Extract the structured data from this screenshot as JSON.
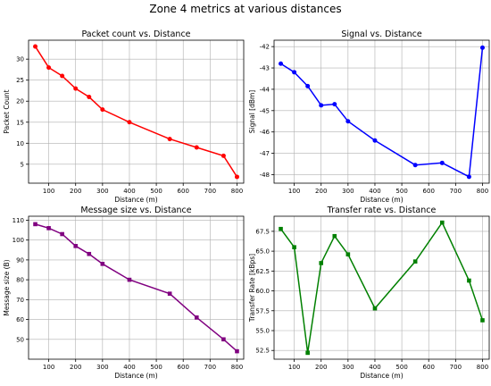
{
  "figure": {
    "title": "Zone 4 metrics at various distances"
  },
  "chart_data": [
    {
      "type": "line",
      "title": "Packet count vs. Distance",
      "xlabel": "Distance (m)",
      "ylabel": "Packet Count",
      "xlim": [
        25,
        825
      ],
      "ylim": [
        0.5,
        34.5
      ],
      "xticks": [
        100,
        200,
        300,
        400,
        500,
        600,
        700,
        800
      ],
      "yticks": [
        5,
        10,
        15,
        20,
        25,
        30
      ],
      "grid": true,
      "color": "#ff0000",
      "marker": "circle",
      "x": [
        50,
        100,
        150,
        200,
        250,
        300,
        400,
        550,
        650,
        750,
        800
      ],
      "y": [
        33,
        28,
        26,
        23,
        21,
        18,
        15,
        11,
        9,
        7,
        2
      ]
    },
    {
      "type": "line",
      "title": "Signal vs. Distance",
      "xlabel": "Distance (m)",
      "ylabel": "Signal [dBm]",
      "xlim": [
        25,
        825
      ],
      "ylim": [
        -48.4,
        -41.7
      ],
      "xticks": [
        100,
        200,
        300,
        400,
        500,
        600,
        700,
        800
      ],
      "yticks": [
        -48,
        -47,
        -46,
        -45,
        -44,
        -43,
        -42
      ],
      "grid": true,
      "color": "#0000ff",
      "marker": "circle",
      "x": [
        50,
        100,
        150,
        200,
        250,
        300,
        400,
        550,
        650,
        750,
        800
      ],
      "y": [
        -42.8,
        -43.2,
        -43.85,
        -44.75,
        -44.7,
        -45.5,
        -46.4,
        -47.55,
        -47.45,
        -48.1,
        -42.05
      ]
    },
    {
      "type": "line",
      "title": "Message size vs. Distance",
      "xlabel": "Distance (m)",
      "ylabel": "Message size (B)",
      "xlim": [
        25,
        825
      ],
      "ylim": [
        40,
        112
      ],
      "xticks": [
        100,
        200,
        300,
        400,
        500,
        600,
        700,
        800
      ],
      "yticks": [
        50,
        60,
        70,
        80,
        90,
        100,
        110
      ],
      "grid": true,
      "color": "#800080",
      "marker": "square",
      "x": [
        50,
        100,
        150,
        200,
        250,
        300,
        400,
        550,
        650,
        750,
        800
      ],
      "y": [
        108,
        106,
        103,
        97,
        93,
        88,
        80,
        73,
        61,
        50,
        44
      ]
    },
    {
      "type": "line",
      "title": "Transfer rate vs. Distance",
      "xlabel": "Distance (m)",
      "ylabel": "Transfer Rate [kBps]",
      "xlim": [
        25,
        825
      ],
      "ylim": [
        51.4,
        69.4
      ],
      "xticks": [
        100,
        200,
        300,
        400,
        500,
        600,
        700,
        800
      ],
      "yticks": [
        52.5,
        55.0,
        57.5,
        60.0,
        62.5,
        65.0,
        67.5
      ],
      "grid": true,
      "color": "#008000",
      "marker": "square",
      "x": [
        50,
        100,
        150,
        200,
        250,
        300,
        400,
        550,
        650,
        750,
        800
      ],
      "y": [
        67.8,
        65.5,
        52.2,
        63.5,
        66.9,
        64.6,
        57.8,
        63.7,
        68.6,
        61.3,
        56.3
      ]
    }
  ]
}
